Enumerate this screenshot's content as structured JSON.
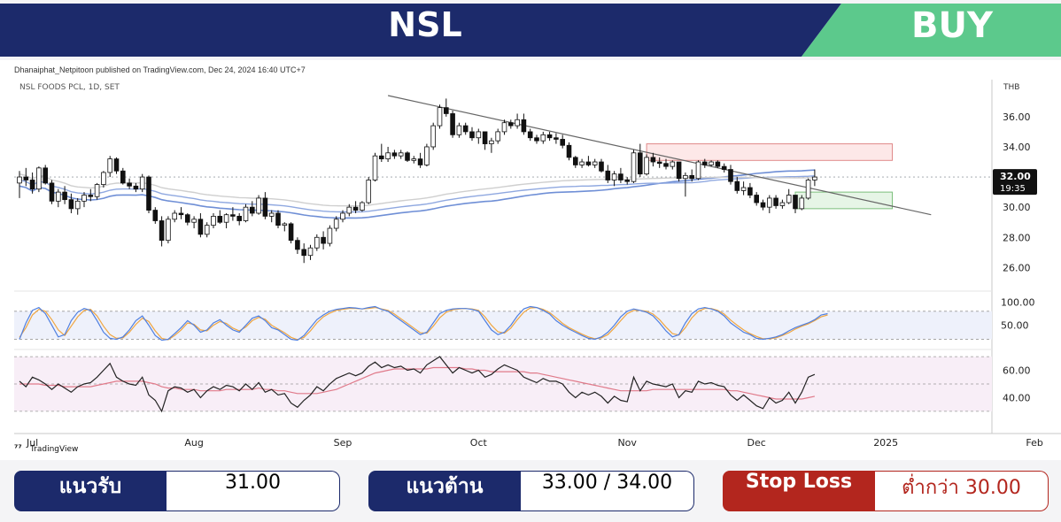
{
  "banner": {
    "ticker": "NSL",
    "signal": "BUY",
    "colors": {
      "navy": "#1c2a6b",
      "green": "#5cc98c"
    }
  },
  "chart_header": {
    "publisher": "Dhanaiphat_Netpitoon published on TradingView.com, Dec 24, 2024 16:40 UTC+7",
    "symbol": "NSL FOODS PCL, 1D, SET",
    "currency": "THB",
    "brand": "TradingView"
  },
  "chart_data": [
    {
      "type": "candlestick",
      "title": "NSL FOODS PCL, 1D, SET",
      "y_ticks": [
        "26.00",
        "28.00",
        "30.00",
        "32.00",
        "34.00",
        "36.00"
      ],
      "ylim": [
        25.2,
        37.4
      ],
      "x_ticks": [
        {
          "label": "Jul",
          "day": 2
        },
        {
          "label": "Aug",
          "day": 27
        },
        {
          "label": "Sep",
          "day": 50
        },
        {
          "label": "Oct",
          "day": 71
        },
        {
          "label": "Nov",
          "day": 94
        },
        {
          "label": "Dec",
          "day": 114
        },
        {
          "label": "2025",
          "day": 134
        },
        {
          "label": "Feb",
          "day": 157
        }
      ],
      "last_price": "32.00",
      "countdown": "19:35",
      "ohlc": [
        [
          31.6,
          32.4,
          30.6,
          32.0
        ],
        [
          32.0,
          32.6,
          31.4,
          31.8
        ],
        [
          31.8,
          32.3,
          30.9,
          31.2
        ],
        [
          31.2,
          32.7,
          31.0,
          32.6
        ],
        [
          32.6,
          32.8,
          31.5,
          31.6
        ],
        [
          31.6,
          31.8,
          30.2,
          30.4
        ],
        [
          30.4,
          31.2,
          30.0,
          31.0
        ],
        [
          31.0,
          31.4,
          30.2,
          30.5
        ],
        [
          30.5,
          30.9,
          29.6,
          29.9
        ],
        [
          29.9,
          30.6,
          29.5,
          30.4
        ],
        [
          30.4,
          31.0,
          30.0,
          30.8
        ],
        [
          30.8,
          31.2,
          30.4,
          30.7
        ],
        [
          30.7,
          31.6,
          30.5,
          31.5
        ],
        [
          31.5,
          32.4,
          31.3,
          32.3
        ],
        [
          32.3,
          33.4,
          32.0,
          33.2
        ],
        [
          33.2,
          33.3,
          32.2,
          32.4
        ],
        [
          32.4,
          32.6,
          31.5,
          31.6
        ],
        [
          31.6,
          31.9,
          31.2,
          31.4
        ],
        [
          31.4,
          31.6,
          31.0,
          31.2
        ],
        [
          31.2,
          32.2,
          31.0,
          32.0
        ],
        [
          32.0,
          32.1,
          29.6,
          29.8
        ],
        [
          29.8,
          30.0,
          28.9,
          29.1
        ],
        [
          29.1,
          29.4,
          27.4,
          27.8
        ],
        [
          27.8,
          29.4,
          27.6,
          29.2
        ],
        [
          29.2,
          29.8,
          29.0,
          29.6
        ],
        [
          29.6,
          30.0,
          29.2,
          29.5
        ],
        [
          29.5,
          29.6,
          28.8,
          29.0
        ],
        [
          29.0,
          29.4,
          28.6,
          29.2
        ],
        [
          29.2,
          29.6,
          28.0,
          28.2
        ],
        [
          28.2,
          29.0,
          28.0,
          28.8
        ],
        [
          28.8,
          29.6,
          28.6,
          29.4
        ],
        [
          29.4,
          29.8,
          28.9,
          29.0
        ],
        [
          29.0,
          29.6,
          28.6,
          29.5
        ],
        [
          29.5,
          30.0,
          29.1,
          29.4
        ],
        [
          29.4,
          29.6,
          28.8,
          29.1
        ],
        [
          29.1,
          30.2,
          29.0,
          30.0
        ],
        [
          30.0,
          30.4,
          29.4,
          29.6
        ],
        [
          29.6,
          30.8,
          29.5,
          30.6
        ],
        [
          30.6,
          31.0,
          29.2,
          29.4
        ],
        [
          29.4,
          29.8,
          29.0,
          29.6
        ],
        [
          29.6,
          29.8,
          28.6,
          28.8
        ],
        [
          28.8,
          29.0,
          28.4,
          28.9
        ],
        [
          28.9,
          29.0,
          27.6,
          27.8
        ],
        [
          27.8,
          28.0,
          26.9,
          27.2
        ],
        [
          27.2,
          27.6,
          26.3,
          26.8
        ],
        [
          26.8,
          27.5,
          26.5,
          27.3
        ],
        [
          27.3,
          28.2,
          27.1,
          28.0
        ],
        [
          28.0,
          28.4,
          27.2,
          27.6
        ],
        [
          27.6,
          28.8,
          27.4,
          28.6
        ],
        [
          28.6,
          29.4,
          28.4,
          29.2
        ],
        [
          29.2,
          29.8,
          29.0,
          29.6
        ],
        [
          29.6,
          30.2,
          29.4,
          30.0
        ],
        [
          30.0,
          30.4,
          29.6,
          29.8
        ],
        [
          29.8,
          30.4,
          29.7,
          30.3
        ],
        [
          30.3,
          32.0,
          30.2,
          31.8
        ],
        [
          31.8,
          33.6,
          31.7,
          33.4
        ],
        [
          33.4,
          34.2,
          33.0,
          33.2
        ],
        [
          33.2,
          34.0,
          33.0,
          33.6
        ],
        [
          33.6,
          33.8,
          33.2,
          33.4
        ],
        [
          33.4,
          33.8,
          33.2,
          33.6
        ],
        [
          33.6,
          33.7,
          33.0,
          33.1
        ],
        [
          33.1,
          33.4,
          32.9,
          33.2
        ],
        [
          33.2,
          33.6,
          32.6,
          32.8
        ],
        [
          32.8,
          34.2,
          32.7,
          34.0
        ],
        [
          34.0,
          35.6,
          33.8,
          35.4
        ],
        [
          35.4,
          36.8,
          35.2,
          36.6
        ],
        [
          36.6,
          37.2,
          36.0,
          36.2
        ],
        [
          36.2,
          36.4,
          34.6,
          34.8
        ],
        [
          34.8,
          35.6,
          34.6,
          35.4
        ],
        [
          35.4,
          35.6,
          34.8,
          35.0
        ],
        [
          35.0,
          35.3,
          34.4,
          34.6
        ],
        [
          34.6,
          35.2,
          34.2,
          35.0
        ],
        [
          35.0,
          35.0,
          33.8,
          34.2
        ],
        [
          34.2,
          34.6,
          33.6,
          34.4
        ],
        [
          34.4,
          35.2,
          34.2,
          35.0
        ],
        [
          35.0,
          35.8,
          34.8,
          35.6
        ],
        [
          35.6,
          35.8,
          35.2,
          35.4
        ],
        [
          35.4,
          36.2,
          35.2,
          35.8
        ],
        [
          35.8,
          36.2,
          34.8,
          35.0
        ],
        [
          35.0,
          35.2,
          34.4,
          34.6
        ],
        [
          34.6,
          34.8,
          34.2,
          34.4
        ],
        [
          34.4,
          35.0,
          34.2,
          34.8
        ],
        [
          34.8,
          35.0,
          34.4,
          34.6
        ],
        [
          34.6,
          34.9,
          34.2,
          34.5
        ],
        [
          34.5,
          34.8,
          33.9,
          34.1
        ],
        [
          34.1,
          34.3,
          33.1,
          33.3
        ],
        [
          33.3,
          33.4,
          32.6,
          32.8
        ],
        [
          32.8,
          33.2,
          32.6,
          33.0
        ],
        [
          33.0,
          33.4,
          32.7,
          32.8
        ],
        [
          32.8,
          33.2,
          32.6,
          33.0
        ],
        [
          33.0,
          33.2,
          32.3,
          32.4
        ],
        [
          32.4,
          32.8,
          31.6,
          31.8
        ],
        [
          31.8,
          32.4,
          31.4,
          32.2
        ],
        [
          32.2,
          32.6,
          31.6,
          31.8
        ],
        [
          31.8,
          32.0,
          31.5,
          31.7
        ],
        [
          31.7,
          33.8,
          31.6,
          33.6
        ],
        [
          33.6,
          34.2,
          32.0,
          32.2
        ],
        [
          32.2,
          33.5,
          32.1,
          33.3
        ],
        [
          33.3,
          33.6,
          32.7,
          33.0
        ],
        [
          33.0,
          33.3,
          32.6,
          32.9
        ],
        [
          32.9,
          33.2,
          32.5,
          32.7
        ],
        [
          32.7,
          33.1,
          32.5,
          33.0
        ],
        [
          33.0,
          33.0,
          31.7,
          31.9
        ],
        [
          31.9,
          32.3,
          30.7,
          32.1
        ],
        [
          32.1,
          32.5,
          31.7,
          31.9
        ],
        [
          31.9,
          33.1,
          31.8,
          33.0
        ],
        [
          33.0,
          33.2,
          32.6,
          32.8
        ],
        [
          32.8,
          33.1,
          32.7,
          33.0
        ],
        [
          33.0,
          33.1,
          32.6,
          32.7
        ],
        [
          32.7,
          32.9,
          32.3,
          32.5
        ],
        [
          32.5,
          32.8,
          31.5,
          31.7
        ],
        [
          31.7,
          32.0,
          30.9,
          31.1
        ],
        [
          31.1,
          31.7,
          30.8,
          31.3
        ],
        [
          31.3,
          31.6,
          30.6,
          30.8
        ],
        [
          30.8,
          31.0,
          30.1,
          30.3
        ],
        [
          30.3,
          30.5,
          29.8,
          30.0
        ],
        [
          30.0,
          30.8,
          29.6,
          30.6
        ],
        [
          30.6,
          30.8,
          29.9,
          30.1
        ],
        [
          30.1,
          30.5,
          29.9,
          30.3
        ],
        [
          30.3,
          31.2,
          30.2,
          30.8
        ],
        [
          30.8,
          30.8,
          29.6,
          29.9
        ],
        [
          29.9,
          30.8,
          29.8,
          30.6
        ],
        [
          30.6,
          31.9,
          30.5,
          31.8
        ],
        [
          31.8,
          32.5,
          31.4,
          32.0
        ]
      ],
      "overlays": {
        "descending_trendline": true,
        "resistance_zone": "33.00 / 34.00",
        "support_zone": "30.00 – 31.00"
      }
    },
    {
      "type": "line",
      "title": "Stochastic",
      "y_ticks": [
        "50.00",
        "100.00"
      ],
      "ylim": [
        0,
        110
      ],
      "bands": [
        20,
        80
      ],
      "k": [
        20,
        55,
        82,
        88,
        75,
        50,
        25,
        30,
        60,
        78,
        86,
        82,
        60,
        35,
        22,
        20,
        25,
        40,
        60,
        70,
        50,
        28,
        18,
        20,
        32,
        45,
        60,
        50,
        35,
        40,
        55,
        62,
        50,
        40,
        35,
        50,
        65,
        70,
        60,
        45,
        40,
        30,
        20,
        18,
        28,
        45,
        62,
        72,
        80,
        84,
        86,
        88,
        87,
        85,
        88,
        90,
        84,
        80,
        70,
        60,
        50,
        40,
        30,
        35,
        55,
        75,
        82,
        85,
        86,
        86,
        84,
        80,
        60,
        40,
        30,
        35,
        50,
        70,
        85,
        90,
        88,
        82,
        74,
        60,
        50,
        42,
        35,
        28,
        22,
        20,
        25,
        35,
        50,
        68,
        80,
        85,
        82,
        78,
        70,
        55,
        38,
        25,
        30,
        55,
        75,
        85,
        88,
        85,
        80,
        70,
        55,
        45,
        35,
        30,
        22,
        20,
        22,
        25,
        30,
        38,
        45,
        50,
        55,
        62,
        72,
        75
      ],
      "d": [
        24,
        45,
        72,
        84,
        80,
        62,
        40,
        28,
        48,
        68,
        82,
        84,
        70,
        48,
        30,
        22,
        23,
        35,
        52,
        65,
        58,
        38,
        22,
        19,
        28,
        40,
        55,
        52,
        40,
        38,
        50,
        58,
        54,
        44,
        38,
        46,
        60,
        67,
        63,
        50,
        42,
        34,
        24,
        19,
        24,
        38,
        55,
        68,
        76,
        82,
        84,
        86,
        86,
        85,
        86,
        88,
        85,
        82,
        74,
        64,
        54,
        44,
        34,
        33,
        48,
        66,
        78,
        83,
        85,
        86,
        85,
        82,
        68,
        50,
        36,
        33,
        44,
        62,
        78,
        87,
        88,
        84,
        77,
        66,
        54,
        45,
        38,
        31,
        25,
        21,
        23,
        30,
        44,
        60,
        75,
        82,
        82,
        80,
        74,
        62,
        46,
        32,
        29,
        45,
        66,
        80,
        86,
        86,
        82,
        74,
        61,
        50,
        40,
        32,
        26,
        21,
        21,
        23,
        28,
        34,
        42,
        48,
        53,
        60,
        68,
        72
      ]
    },
    {
      "type": "line",
      "title": "RSI",
      "y_ticks": [
        "40.00",
        "60.00"
      ],
      "ylim": [
        28,
        72
      ],
      "bands": [
        30,
        50,
        70
      ],
      "rsi": [
        52,
        48,
        55,
        53,
        50,
        46,
        50,
        47,
        44,
        48,
        50,
        51,
        55,
        60,
        65,
        55,
        52,
        50,
        49,
        55,
        42,
        38,
        30,
        45,
        48,
        47,
        44,
        46,
        40,
        45,
        48,
        46,
        49,
        48,
        45,
        50,
        46,
        51,
        44,
        46,
        42,
        43,
        36,
        33,
        38,
        42,
        48,
        45,
        50,
        54,
        56,
        58,
        56,
        58,
        63,
        66,
        62,
        64,
        62,
        63,
        60,
        61,
        58,
        64,
        67,
        70,
        64,
        58,
        62,
        60,
        58,
        60,
        55,
        57,
        61,
        64,
        62,
        60,
        55,
        53,
        51,
        54,
        52,
        52,
        50,
        44,
        40,
        44,
        42,
        44,
        41,
        36,
        41,
        38,
        37,
        55,
        45,
        52,
        50,
        49,
        48,
        50,
        40,
        45,
        44,
        52,
        50,
        51,
        49,
        48,
        42,
        38,
        42,
        38,
        34,
        32,
        40,
        36,
        38,
        44,
        36,
        44,
        55,
        57
      ],
      "ma": [
        50,
        50,
        50,
        50,
        49,
        49,
        49,
        48,
        48,
        48,
        48,
        48,
        49,
        50,
        51,
        52,
        52,
        52,
        52,
        52,
        51,
        50,
        48,
        47,
        47,
        46,
        46,
        46,
        45,
        45,
        45,
        45,
        46,
        46,
        46,
        46,
        46,
        47,
        46,
        46,
        45,
        45,
        44,
        43,
        43,
        43,
        43,
        44,
        45,
        46,
        48,
        50,
        52,
        54,
        56,
        58,
        59,
        60,
        61,
        61,
        61,
        61,
        61,
        61,
        62,
        62,
        62,
        62,
        62,
        61,
        61,
        60,
        60,
        59,
        59,
        59,
        59,
        59,
        59,
        58,
        58,
        57,
        56,
        55,
        54,
        53,
        52,
        51,
        50,
        49,
        48,
        47,
        46,
        45,
        45,
        45,
        45,
        45,
        46,
        46,
        46,
        46,
        46,
        46,
        46,
        46,
        46,
        46,
        46,
        46,
        45,
        45,
        44,
        43,
        42,
        41,
        40,
        39,
        39,
        39,
        39,
        39,
        40,
        41
      ]
    }
  ],
  "levels": {
    "support": {
      "label": "แนวรับ",
      "value": "31.00"
    },
    "resistance": {
      "label": "แนวต้าน",
      "value": "33.00 / 34.00"
    },
    "stop_loss": {
      "label": "Stop Loss",
      "value": "ต่ำกว่า 30.00"
    }
  }
}
